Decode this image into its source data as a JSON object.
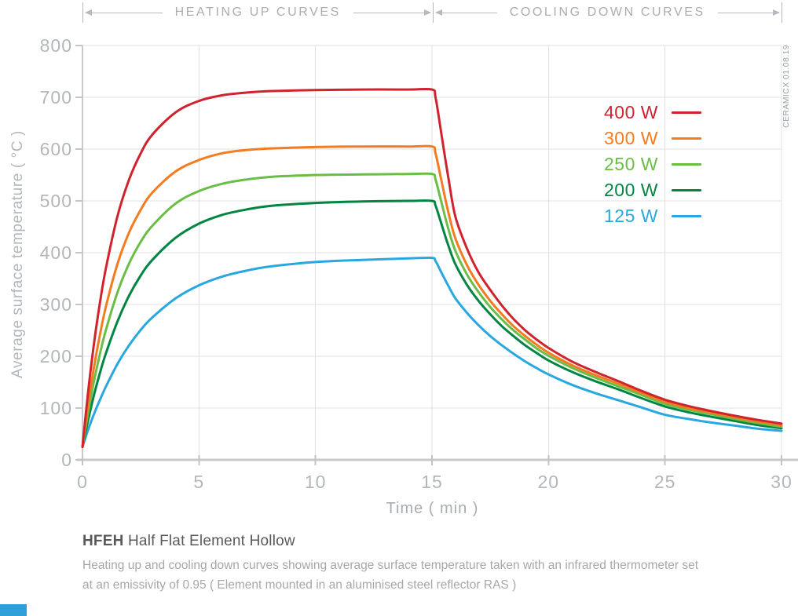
{
  "header": {
    "left_section": "HEATING UP CURVES",
    "right_section": "COOLING DOWN CURVES"
  },
  "watermark": "CERAMICX 01.08.19",
  "chart_data": {
    "type": "line",
    "xlabel": "Time ( min )",
    "ylabel": "Average surface temperature ( °C )",
    "xlim": [
      0,
      30
    ],
    "ylim": [
      0,
      800
    ],
    "x_ticks": [
      0,
      5,
      10,
      15,
      20,
      25,
      30
    ],
    "y_ticks": [
      0,
      100,
      200,
      300,
      400,
      500,
      600,
      700,
      800
    ],
    "grid": true,
    "legend_position": "upper right",
    "heating_phase_end_min": 15,
    "series": [
      {
        "name": "400 W",
        "color": "#cf232e",
        "points": [
          [
            0,
            25
          ],
          [
            0.25,
            134
          ],
          [
            0.5,
            226
          ],
          [
            0.75,
            304
          ],
          [
            1,
            369
          ],
          [
            1.5,
            470
          ],
          [
            2,
            541
          ],
          [
            2.5,
            592
          ],
          [
            3,
            628
          ],
          [
            4,
            671
          ],
          [
            5,
            693
          ],
          [
            6,
            704
          ],
          [
            7,
            709
          ],
          [
            8,
            712
          ],
          [
            10,
            714
          ],
          [
            12,
            715
          ],
          [
            14,
            715
          ],
          [
            15,
            715
          ],
          [
            15.15,
            700
          ],
          [
            15.4,
            630
          ],
          [
            15.7,
            545
          ],
          [
            16,
            470
          ],
          [
            16.5,
            408
          ],
          [
            17,
            362
          ],
          [
            17.5,
            328
          ],
          [
            18,
            298
          ],
          [
            18.5,
            272
          ],
          [
            19,
            250
          ],
          [
            19.5,
            232
          ],
          [
            20,
            216
          ],
          [
            21,
            190
          ],
          [
            22,
            170
          ],
          [
            23,
            152
          ],
          [
            24,
            133
          ],
          [
            25,
            116
          ],
          [
            26,
            104
          ],
          [
            27,
            94
          ],
          [
            28,
            85
          ],
          [
            29,
            77
          ],
          [
            30,
            70
          ]
        ]
      },
      {
        "name": "300 W",
        "color": "#f47b20",
        "points": [
          [
            0,
            25
          ],
          [
            0.25,
            109
          ],
          [
            0.5,
            180
          ],
          [
            0.75,
            242
          ],
          [
            1,
            295
          ],
          [
            1.5,
            378
          ],
          [
            2,
            439
          ],
          [
            2.5,
            483
          ],
          [
            3,
            516
          ],
          [
            4,
            557
          ],
          [
            5,
            579
          ],
          [
            6,
            592
          ],
          [
            7,
            598
          ],
          [
            8,
            601
          ],
          [
            10,
            604
          ],
          [
            12,
            605
          ],
          [
            14,
            605
          ],
          [
            15,
            605
          ],
          [
            15.15,
            592
          ],
          [
            15.4,
            540
          ],
          [
            15.7,
            478
          ],
          [
            16,
            428
          ],
          [
            16.5,
            376
          ],
          [
            17,
            338
          ],
          [
            17.5,
            307
          ],
          [
            18,
            281
          ],
          [
            18.5,
            258
          ],
          [
            19,
            239
          ],
          [
            19.5,
            222
          ],
          [
            20,
            207
          ],
          [
            21,
            183
          ],
          [
            22,
            164
          ],
          [
            23,
            147
          ],
          [
            24,
            129
          ],
          [
            25,
            112
          ],
          [
            26,
            100
          ],
          [
            27,
            91
          ],
          [
            28,
            82
          ],
          [
            29,
            74
          ],
          [
            30,
            67
          ]
        ]
      },
      {
        "name": "250 W",
        "color": "#6abd45",
        "points": [
          [
            0,
            25
          ],
          [
            0.25,
            93
          ],
          [
            0.5,
            153
          ],
          [
            0.75,
            205
          ],
          [
            1,
            250
          ],
          [
            1.5,
            323
          ],
          [
            2,
            379
          ],
          [
            2.5,
            421
          ],
          [
            3,
            452
          ],
          [
            4,
            495
          ],
          [
            5,
            519
          ],
          [
            6,
            533
          ],
          [
            7,
            541
          ],
          [
            8,
            546
          ],
          [
            10,
            550
          ],
          [
            12,
            551
          ],
          [
            14,
            552
          ],
          [
            15,
            552
          ],
          [
            15.15,
            541
          ],
          [
            15.4,
            498
          ],
          [
            15.7,
            446
          ],
          [
            16,
            404
          ],
          [
            16.5,
            358
          ],
          [
            17,
            324
          ],
          [
            17.5,
            295
          ],
          [
            18,
            271
          ],
          [
            18.5,
            250
          ],
          [
            19,
            232
          ],
          [
            19.5,
            215
          ],
          [
            20,
            201
          ],
          [
            21,
            178
          ],
          [
            22,
            159
          ],
          [
            23,
            142
          ],
          [
            24,
            125
          ],
          [
            25,
            108
          ],
          [
            26,
            97
          ],
          [
            27,
            88
          ],
          [
            28,
            79
          ],
          [
            29,
            71
          ],
          [
            30,
            64
          ]
        ]
      },
      {
        "name": "200 W",
        "color": "#008542",
        "points": [
          [
            0,
            25
          ],
          [
            0.25,
            78
          ],
          [
            0.5,
            126
          ],
          [
            0.75,
            168
          ],
          [
            1,
            205
          ],
          [
            1.5,
            267
          ],
          [
            2,
            317
          ],
          [
            2.5,
            356
          ],
          [
            3,
            386
          ],
          [
            4,
            429
          ],
          [
            5,
            456
          ],
          [
            6,
            473
          ],
          [
            7,
            483
          ],
          [
            8,
            490
          ],
          [
            10,
            496
          ],
          [
            12,
            499
          ],
          [
            14,
            500
          ],
          [
            15,
            500
          ],
          [
            15.15,
            491
          ],
          [
            15.4,
            456
          ],
          [
            15.7,
            414
          ],
          [
            16,
            378
          ],
          [
            16.5,
            338
          ],
          [
            17,
            307
          ],
          [
            17.5,
            281
          ],
          [
            18,
            258
          ],
          [
            18.5,
            239
          ],
          [
            19,
            221
          ],
          [
            19.5,
            206
          ],
          [
            20,
            192
          ],
          [
            21,
            170
          ],
          [
            22,
            152
          ],
          [
            23,
            136
          ],
          [
            24,
            119
          ],
          [
            25,
            103
          ],
          [
            26,
            92
          ],
          [
            27,
            83
          ],
          [
            28,
            75
          ],
          [
            29,
            67
          ],
          [
            30,
            61
          ]
        ]
      },
      {
        "name": "125 W",
        "color": "#29a8e0",
        "points": [
          [
            0,
            25
          ],
          [
            0.25,
            59
          ],
          [
            0.5,
            89
          ],
          [
            0.75,
            116
          ],
          [
            1,
            141
          ],
          [
            1.5,
            185
          ],
          [
            2,
            221
          ],
          [
            2.5,
            251
          ],
          [
            3,
            275
          ],
          [
            4,
            312
          ],
          [
            5,
            337
          ],
          [
            6,
            354
          ],
          [
            7,
            365
          ],
          [
            8,
            373
          ],
          [
            10,
            382
          ],
          [
            12,
            386
          ],
          [
            14,
            389
          ],
          [
            15,
            390
          ],
          [
            15.15,
            384
          ],
          [
            15.4,
            362
          ],
          [
            15.7,
            336
          ],
          [
            16,
            312
          ],
          [
            16.5,
            284
          ],
          [
            17,
            260
          ],
          [
            17.5,
            239
          ],
          [
            18,
            221
          ],
          [
            18.5,
            205
          ],
          [
            19,
            190
          ],
          [
            19.5,
            177
          ],
          [
            20,
            165
          ],
          [
            21,
            145
          ],
          [
            22,
            129
          ],
          [
            23,
            115
          ],
          [
            24,
            101
          ],
          [
            25,
            87
          ],
          [
            26,
            79
          ],
          [
            27,
            72
          ],
          [
            28,
            66
          ],
          [
            29,
            60
          ],
          [
            30,
            56
          ]
        ]
      }
    ]
  },
  "footer": {
    "title_code": "HFEH",
    "title_rest": "Half Flat Element Hollow",
    "description_line1": "Heating up and cooling down curves showing average surface temperature taken with an infrared thermometer set",
    "description_line2": "at an emissivity of 0.95  ( Element mounted in an aluminised steel reflector RAS )"
  },
  "colors": {
    "grid": "#dfe0e2",
    "axis": "#c7c9cb",
    "tick": "#c2c4c6",
    "tick_label": "#b3b7bb",
    "header_text": "#a9aeb4",
    "footer_title": "#58595b",
    "footer_desc": "#a5a7aa",
    "brand_blue": "#2e9fd8"
  }
}
